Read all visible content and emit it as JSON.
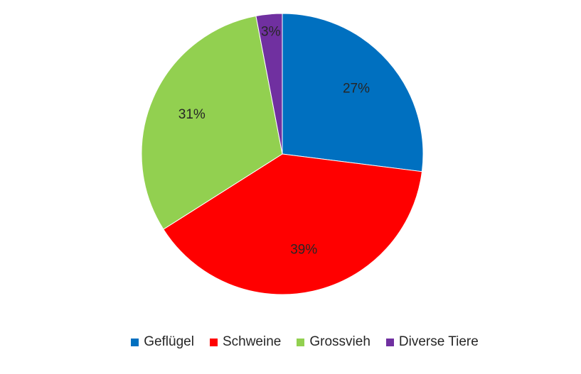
{
  "chart_data": {
    "type": "pie",
    "title": "",
    "start_angle_deg": 0,
    "direction": "clockwise",
    "legend_position": "bottom",
    "slices": [
      {
        "label": "Geflügel",
        "value": 27,
        "display": "27%",
        "color": "#0070C0"
      },
      {
        "label": "Schweine",
        "value": 39,
        "display": "39%",
        "color": "#FF0000"
      },
      {
        "label": "Grossvieh",
        "value": 31,
        "display": "31%",
        "color": "#92D050"
      },
      {
        "label": "Diverse Tiere",
        "value": 3,
        "display": "3%",
        "color": "#7030A0"
      }
    ]
  }
}
